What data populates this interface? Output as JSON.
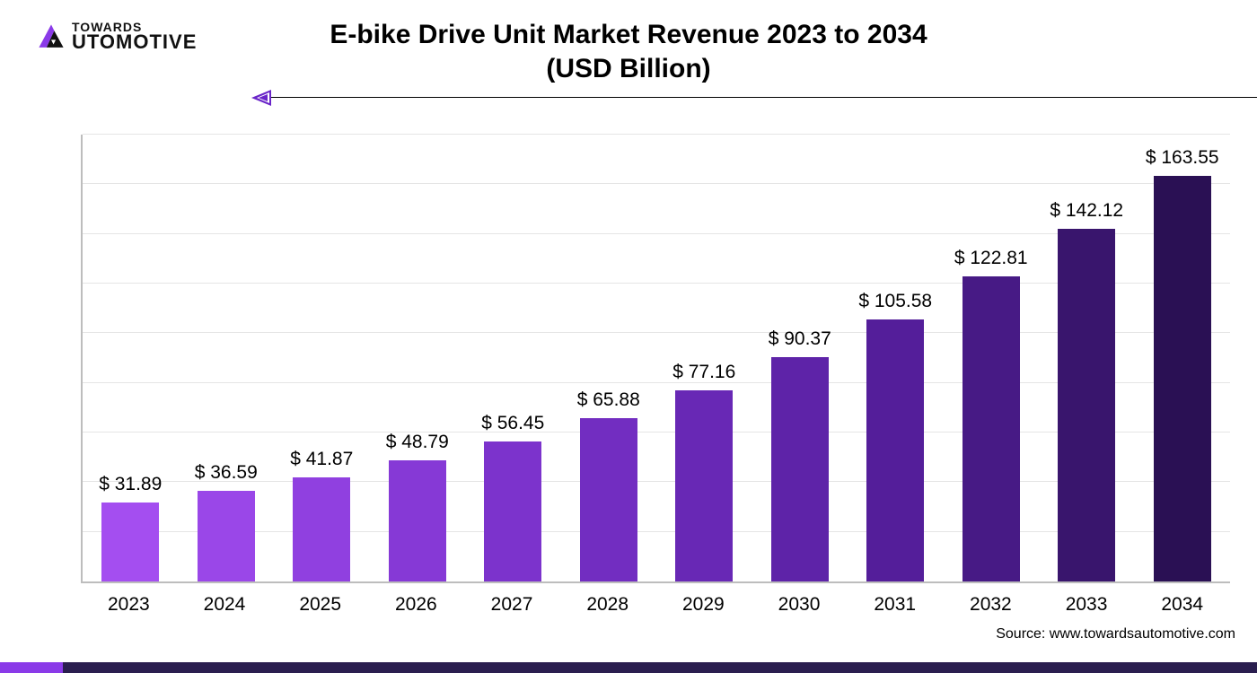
{
  "logo": {
    "line1": "TOWARDS",
    "line2": "UTOMOTIVE",
    "accent_color": "#8a3ae8",
    "dark_color": "#111111"
  },
  "title": {
    "line1": "E-bike Drive Unit Market Revenue 2023 to 2034",
    "line2": "(USD Billion)",
    "fontsize": 30,
    "color": "#000000"
  },
  "arrow": {
    "line_color": "#000000",
    "head_color": "#6a25c9"
  },
  "chart": {
    "type": "bar",
    "categories": [
      "2023",
      "2024",
      "2025",
      "2026",
      "2027",
      "2028",
      "2029",
      "2030",
      "2031",
      "2032",
      "2033",
      "2034"
    ],
    "values": [
      31.89,
      36.59,
      41.87,
      48.79,
      56.45,
      65.88,
      77.16,
      90.37,
      105.58,
      122.81,
      142.12,
      163.55
    ],
    "value_labels": [
      "$ 31.89",
      "$ 36.59",
      "$ 41.87",
      "$ 48.79",
      "$ 56.45",
      "$ 65.88",
      "$ 77.16",
      "$ 90.37",
      "$ 105.58",
      "$ 122.81",
      "$ 142.12",
      "$ 163.55"
    ],
    "bar_colors": [
      "#a44ef0",
      "#9a47e8",
      "#9040e0",
      "#8639d6",
      "#7c33cc",
      "#722dc1",
      "#6828b5",
      "#5e23a8",
      "#541e9a",
      "#471a85",
      "#39156d",
      "#2a1054"
    ],
    "ylim": [
      0,
      180
    ],
    "gridline_step": 20,
    "gridline_color": "#e5e5e5",
    "axis_color": "#bdbdbd",
    "background_color": "#ffffff",
    "bar_width_ratio": 0.6,
    "label_fontsize": 21,
    "xlabel_fontsize": 21
  },
  "source": {
    "text": "Source: www.towardsautomotive.com",
    "fontsize": 16
  },
  "footer": {
    "bar_color": "#2a1e4f",
    "accent_color": "#8a3ae8"
  }
}
